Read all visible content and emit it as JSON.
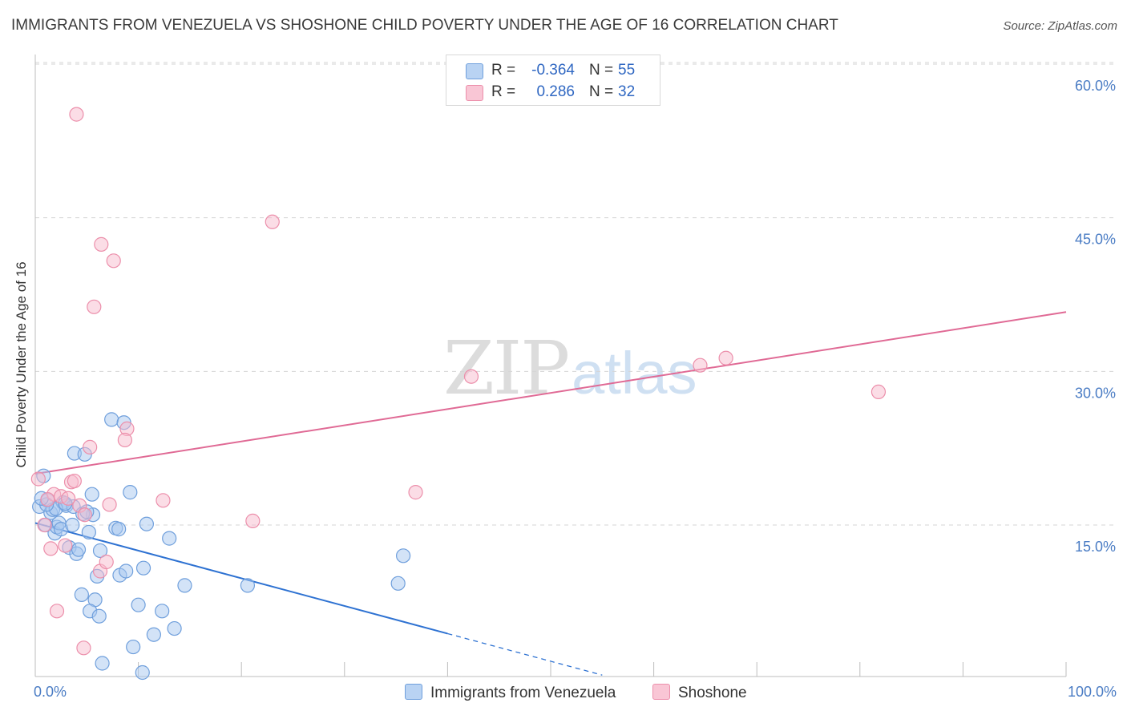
{
  "header": {
    "title": "IMMIGRANTS FROM VENEZUELA VS SHOSHONE CHILD POVERTY UNDER THE AGE OF 16 CORRELATION CHART",
    "source": "Source: ZipAtlas.com"
  },
  "watermark": {
    "zip": "ZIP",
    "atlas": "atlas"
  },
  "legend": {
    "series1": {
      "r_label": "R =",
      "r_value": "-0.364",
      "n_label": "N =",
      "n_value": "55"
    },
    "series2": {
      "r_label": "R =",
      "r_value": "0.286",
      "n_label": "N =",
      "n_value": "32"
    }
  },
  "bottom_legend": {
    "series1": "Immigrants from Venezuela",
    "series2": "Shoshone"
  },
  "colors": {
    "blue_fill": "#a8c8f0",
    "blue_stroke": "#6f9fdc",
    "blue_line": "#2e72d2",
    "pink_fill": "#f8bccd",
    "pink_stroke": "#ec8fab",
    "pink_line": "#e06a95",
    "grid": "#d5d5d5",
    "axis_text": "#4a7cc4"
  },
  "chart_data": {
    "type": "scatter",
    "title": "IMMIGRANTS FROM VENEZUELA VS SHOSHONE CHILD POVERTY UNDER THE AGE OF 16 CORRELATION CHART",
    "xlabel": "",
    "ylabel": "Child Poverty Under the Age of 16",
    "xlim": [
      0,
      100
    ],
    "ylim": [
      0,
      63
    ],
    "x_tick_labels": [
      "0.0%",
      "100.0%"
    ],
    "y_ticks": [
      15,
      30,
      45,
      60
    ],
    "y_tick_labels": [
      "15.0%",
      "30.0%",
      "45.0%",
      "60.0%"
    ],
    "grid": true,
    "legend_position": "top-center",
    "series": [
      {
        "name": "Immigrants from Venezuela",
        "r": -0.364,
        "n": 55,
        "trend": {
          "x0": 0,
          "y0": 15.2,
          "x1": 40,
          "y1": 4.4,
          "dash_to_x": 55
        },
        "points": [
          [
            0.4,
            16.8
          ],
          [
            0.8,
            19.8
          ],
          [
            1.0,
            15.0
          ],
          [
            1.2,
            17.4
          ],
          [
            1.5,
            16.2
          ],
          [
            1.7,
            16.5
          ],
          [
            1.9,
            14.2
          ],
          [
            2.1,
            14.8
          ],
          [
            2.3,
            15.2
          ],
          [
            2.5,
            14.6
          ],
          [
            2.7,
            17.2
          ],
          [
            3.0,
            16.9
          ],
          [
            3.3,
            12.8
          ],
          [
            3.6,
            15.0
          ],
          [
            3.8,
            22.0
          ],
          [
            4.0,
            12.2
          ],
          [
            4.2,
            12.6
          ],
          [
            4.5,
            8.2
          ],
          [
            4.8,
            21.9
          ],
          [
            5.2,
            14.3
          ],
          [
            5.5,
            18.0
          ],
          [
            5.6,
            16.0
          ],
          [
            5.8,
            7.7
          ],
          [
            6.0,
            10.0
          ],
          [
            6.3,
            12.5
          ],
          [
            6.5,
            1.5
          ],
          [
            7.4,
            25.3
          ],
          [
            7.8,
            14.7
          ],
          [
            8.1,
            14.6
          ],
          [
            8.2,
            10.1
          ],
          [
            8.6,
            25.0
          ],
          [
            8.8,
            10.5
          ],
          [
            9.2,
            18.2
          ],
          [
            9.5,
            3.1
          ],
          [
            10.0,
            7.2
          ],
          [
            10.5,
            10.8
          ],
          [
            10.8,
            15.1
          ],
          [
            11.5,
            4.3
          ],
          [
            12.3,
            6.6
          ],
          [
            13.0,
            13.7
          ],
          [
            13.5,
            4.9
          ],
          [
            14.5,
            9.1
          ],
          [
            20.6,
            9.1
          ],
          [
            35.2,
            9.3
          ],
          [
            35.7,
            12.0
          ],
          [
            5.3,
            6.6
          ],
          [
            6.2,
            6.1
          ],
          [
            10.4,
            0.6
          ],
          [
            2.0,
            16.6
          ],
          [
            1.1,
            17.0
          ],
          [
            3.7,
            16.8
          ],
          [
            4.6,
            16.1
          ],
          [
            0.6,
            17.6
          ],
          [
            2.9,
            17.1
          ],
          [
            5.0,
            16.3
          ]
        ]
      },
      {
        "name": "Shoshone",
        "r": 0.286,
        "n": 32,
        "trend": {
          "x0": 0,
          "y0": 20.0,
          "x1": 100,
          "y1": 35.8
        },
        "points": [
          [
            4.0,
            55.1
          ],
          [
            6.4,
            42.4
          ],
          [
            7.6,
            40.8
          ],
          [
            5.7,
            36.3
          ],
          [
            23.0,
            44.6
          ],
          [
            42.3,
            29.5
          ],
          [
            64.5,
            30.6
          ],
          [
            67.0,
            31.3
          ],
          [
            81.8,
            28.0
          ],
          [
            8.9,
            24.4
          ],
          [
            8.7,
            23.3
          ],
          [
            5.3,
            22.6
          ],
          [
            36.9,
            18.2
          ],
          [
            12.4,
            17.4
          ],
          [
            7.2,
            17.0
          ],
          [
            21.1,
            15.4
          ],
          [
            1.8,
            18.0
          ],
          [
            2.5,
            17.8
          ],
          [
            3.5,
            19.2
          ],
          [
            3.8,
            19.3
          ],
          [
            4.3,
            16.9
          ],
          [
            4.8,
            16.0
          ],
          [
            2.9,
            13.0
          ],
          [
            1.5,
            12.7
          ],
          [
            6.3,
            10.5
          ],
          [
            6.9,
            11.4
          ],
          [
            2.1,
            6.6
          ],
          [
            4.7,
            3.0
          ],
          [
            0.9,
            15.0
          ],
          [
            0.3,
            19.5
          ],
          [
            3.2,
            17.6
          ],
          [
            1.2,
            17.5
          ]
        ]
      }
    ]
  }
}
